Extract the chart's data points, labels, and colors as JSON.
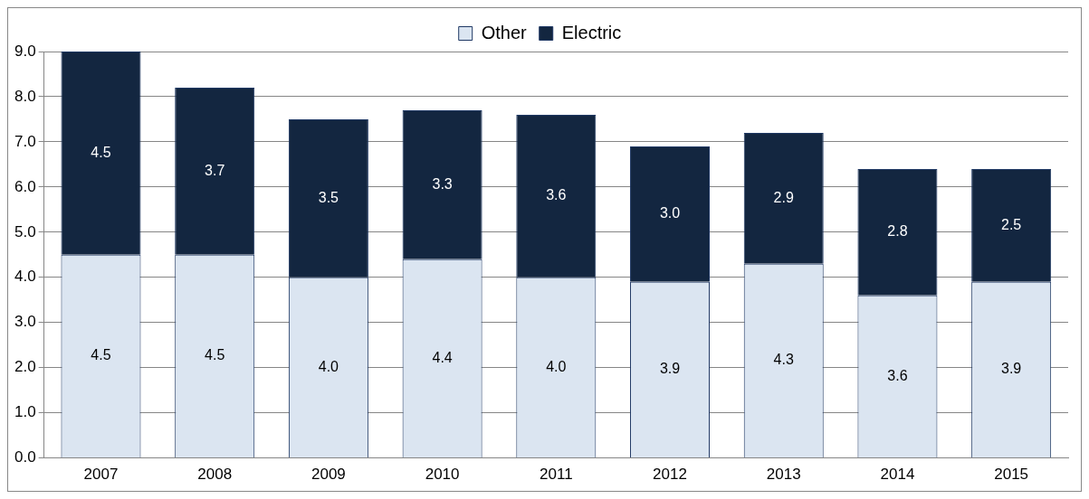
{
  "chart_data": {
    "type": "bar",
    "stacked": true,
    "categories": [
      "2007",
      "2008",
      "2009",
      "2010",
      "2011",
      "2012",
      "2013",
      "2014",
      "2015"
    ],
    "series": [
      {
        "name": "Other",
        "color": "#dbe5f1",
        "values": [
          4.5,
          4.5,
          4.0,
          4.4,
          4.0,
          3.9,
          4.3,
          3.6,
          3.9
        ],
        "value_labels": [
          "4.5",
          "4.5",
          "4.0",
          "4.4",
          "4.0",
          "3.9",
          "4.3",
          "3.6",
          "3.9"
        ]
      },
      {
        "name": "Electric",
        "color": "#132640",
        "values": [
          4.5,
          3.7,
          3.5,
          3.3,
          3.6,
          3.0,
          2.9,
          2.8,
          2.5
        ],
        "value_labels": [
          "4.5",
          "3.7",
          "3.5",
          "3.3",
          "3.6",
          "3.0",
          "2.9",
          "2.8",
          "2.5"
        ]
      }
    ],
    "ylim": [
      0,
      9
    ],
    "yticks": [
      {
        "value": 0,
        "label": "0.0"
      },
      {
        "value": 1,
        "label": "1.0"
      },
      {
        "value": 2,
        "label": "2.0"
      },
      {
        "value": 3,
        "label": "3.0"
      },
      {
        "value": 4,
        "label": "4.0"
      },
      {
        "value": 5,
        "label": "5.0"
      },
      {
        "value": 6,
        "label": "6.0"
      },
      {
        "value": 7,
        "label": "7.0"
      },
      {
        "value": 8,
        "label": "8.0"
      },
      {
        "value": 9,
        "label": "9.0"
      }
    ],
    "grid": "y",
    "legend": "top"
  }
}
